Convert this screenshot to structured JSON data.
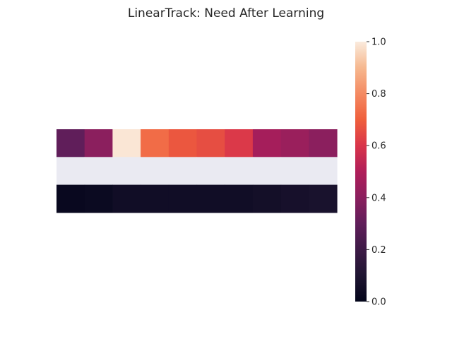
{
  "chart_data": {
    "type": "heatmap",
    "title": "LinearTrack: Need After Learning",
    "rows": [
      {
        "values": [
          0.3,
          0.4,
          0.99,
          0.73,
          0.68,
          0.66,
          0.61,
          0.47,
          0.44,
          0.4
        ],
        "missing": false
      },
      {
        "values": [],
        "missing": true
      },
      {
        "values": [
          0.02,
          0.03,
          0.05,
          0.05,
          0.05,
          0.05,
          0.05,
          0.06,
          0.07,
          0.08
        ],
        "missing": false
      }
    ],
    "columns": 10,
    "xticks_visible": false,
    "yticks_visible": false,
    "colormap": "rocket",
    "colormap_stops": [
      {
        "v": 0.0,
        "color": "#03051a"
      },
      {
        "v": 0.1,
        "color": "#1f1532"
      },
      {
        "v": 0.2,
        "color": "#3d1a46"
      },
      {
        "v": 0.3,
        "color": "#601e5a"
      },
      {
        "v": 0.4,
        "color": "#8b1f5e"
      },
      {
        "v": 0.5,
        "color": "#b01e59"
      },
      {
        "v": 0.6,
        "color": "#d9354a"
      },
      {
        "v": 0.7,
        "color": "#ef5f3c"
      },
      {
        "v": 0.8,
        "color": "#f48a62"
      },
      {
        "v": 0.9,
        "color": "#f6b88f"
      },
      {
        "v": 1.0,
        "color": "#faebdd"
      }
    ],
    "missing_color": "#eaeaf2",
    "colorbar": {
      "range": [
        0.0,
        1.0
      ],
      "ticks": [
        0.0,
        0.2,
        0.4,
        0.6,
        0.8,
        1.0
      ],
      "tick_labels": [
        "0.0",
        "0.2",
        "0.4",
        "0.6",
        "0.8",
        "1.0"
      ],
      "placement": "right"
    }
  }
}
